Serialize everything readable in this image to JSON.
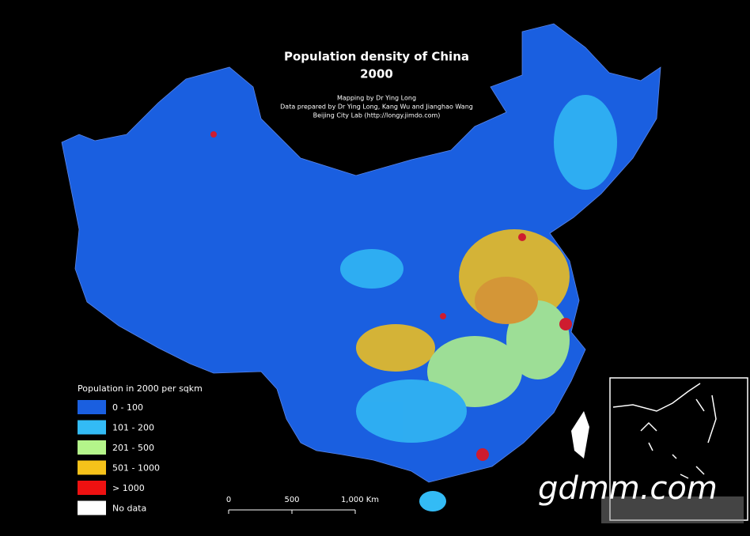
{
  "map": {
    "title": "Population density of China",
    "year": "2000",
    "credits": [
      "Mapping by Dr Ying Long",
      "Data prepared by Dr Ying Long, Kang Wu and Jianghao Wang",
      "Beijing City Lab (http://longy.jimdo.com)"
    ],
    "legend": {
      "title": "Population in 2000 per sqkm",
      "items": [
        {
          "label": "0 - 100",
          "color": "#1a5fe0"
        },
        {
          "label": "101 - 200",
          "color": "#33bbf5"
        },
        {
          "label": "201 - 500",
          "color": "#b4f58a"
        },
        {
          "label": "501 - 1000",
          "color": "#f5c21a"
        },
        {
          "label": "> 1000",
          "color": "#ee1111"
        },
        {
          "label": "No data",
          "color": "#ffffff"
        }
      ]
    },
    "scale_bar": [
      "0",
      "500",
      "1,000 Km"
    ],
    "watermark": "gdmm.com"
  }
}
